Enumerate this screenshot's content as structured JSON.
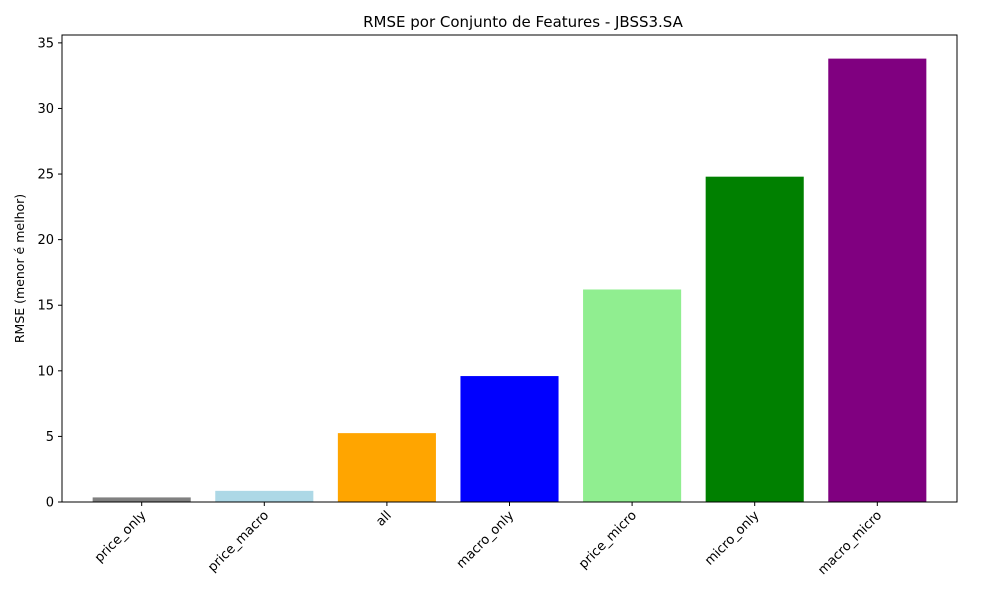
{
  "chart_data": {
    "type": "bar",
    "title": "RMSE por Conjunto de Features - JBSS3.SA",
    "xlabel": "",
    "ylabel": "RMSE (menor é melhor)",
    "categories": [
      "price_only",
      "price_macro",
      "all",
      "macro_only",
      "price_micro",
      "micro_only",
      "macro_micro"
    ],
    "values": [
      0.35,
      0.85,
      5.25,
      9.6,
      16.2,
      24.8,
      33.8
    ],
    "colors": [
      "#808080",
      "#add8e6",
      "#ffa500",
      "#0000ff",
      "#90ee90",
      "#008000",
      "#800080"
    ],
    "ylim": [
      0,
      35.6
    ],
    "yticks": [
      0,
      5,
      10,
      15,
      20,
      25,
      30,
      35
    ],
    "grid": false,
    "legend": "none"
  }
}
